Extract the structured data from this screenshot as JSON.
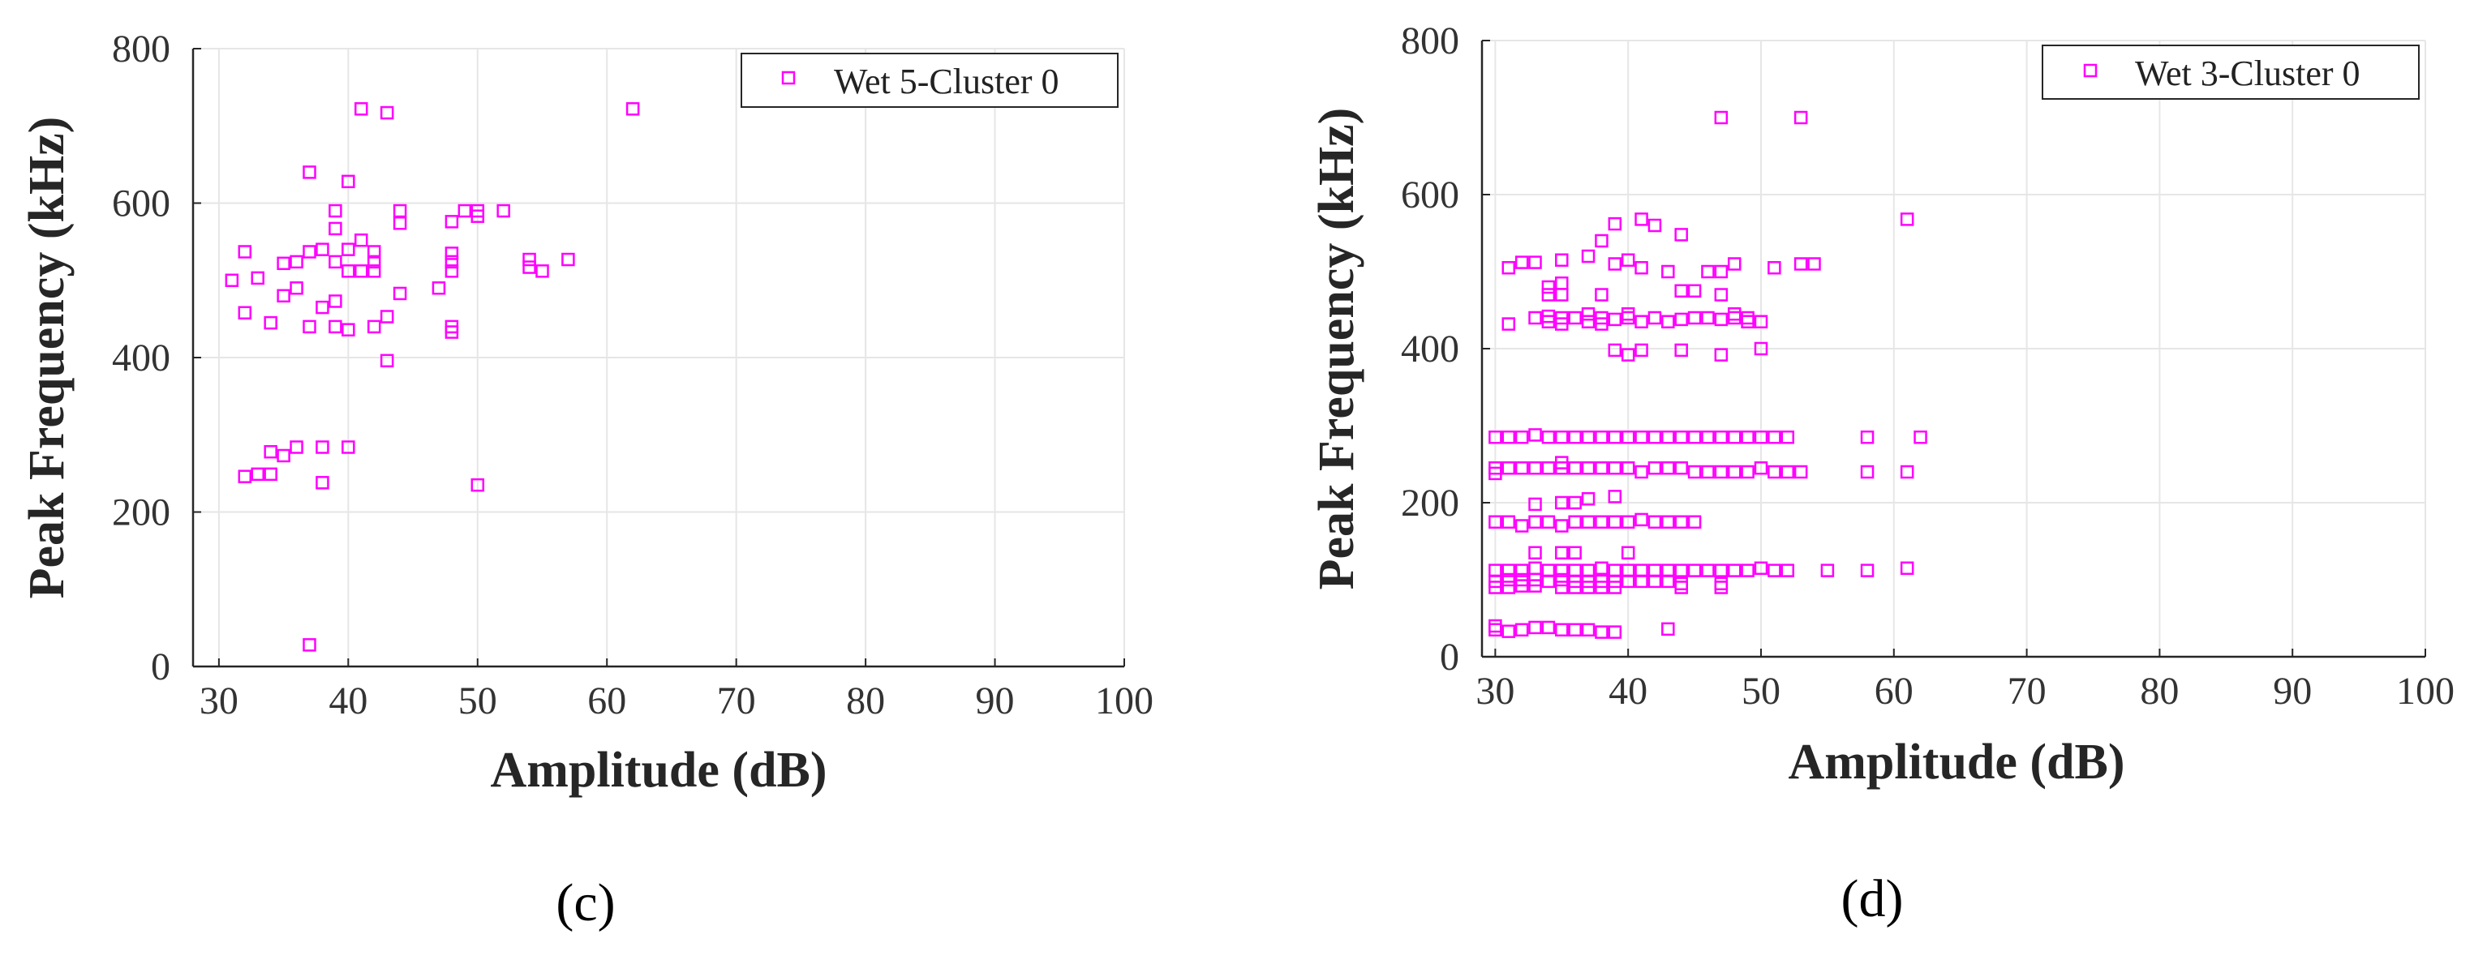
{
  "captions": {
    "c": "(c)",
    "d": "(d)"
  },
  "colors": {
    "marker": "#ff00ff",
    "grid": "#e6e6e6",
    "axis": "#262626"
  },
  "chart_data": [
    {
      "type": "scatter",
      "title": "",
      "xlabel": "Amplitude (dB)",
      "ylabel": "Peak Frequency (kHz)",
      "xlim": [
        28,
        100
      ],
      "ylim": [
        0,
        800
      ],
      "xticks": [
        30,
        40,
        50,
        60,
        70,
        80,
        90,
        100
      ],
      "yticks": [
        0,
        200,
        400,
        600,
        800
      ],
      "grid": true,
      "legend_position": "top-right",
      "series": [
        {
          "name": "Wet 5-Cluster 0",
          "marker": "square",
          "points": [
            [
              31,
              500
            ],
            [
              32,
              537
            ],
            [
              32,
              458
            ],
            [
              32,
              246
            ],
            [
              33,
              503
            ],
            [
              33,
              249
            ],
            [
              34,
              445
            ],
            [
              34,
              278
            ],
            [
              34,
              249
            ],
            [
              35,
              522
            ],
            [
              35,
              480
            ],
            [
              35,
              273
            ],
            [
              36,
              524
            ],
            [
              36,
              490
            ],
            [
              36,
              284
            ],
            [
              37,
              640
            ],
            [
              37,
              537
            ],
            [
              37,
              440
            ],
            [
              37,
              28
            ],
            [
              38,
              540
            ],
            [
              38,
              465
            ],
            [
              38,
              284
            ],
            [
              38,
              238
            ],
            [
              39,
              590
            ],
            [
              39,
              567
            ],
            [
              39,
              524
            ],
            [
              39,
              473
            ],
            [
              39,
              440
            ],
            [
              40,
              628
            ],
            [
              40,
              540
            ],
            [
              40,
              512
            ],
            [
              40,
              436
            ],
            [
              40,
              284
            ],
            [
              41,
              722
            ],
            [
              41,
              552
            ],
            [
              41,
              512
            ],
            [
              42,
              537
            ],
            [
              42,
              524
            ],
            [
              42,
              512
            ],
            [
              42,
              440
            ],
            [
              43,
              717
            ],
            [
              43,
              453
            ],
            [
              43,
              396
            ],
            [
              44,
              590
            ],
            [
              44,
              574
            ],
            [
              44,
              483
            ],
            [
              47,
              490
            ],
            [
              48,
              576
            ],
            [
              48,
              535
            ],
            [
              48,
              524
            ],
            [
              48,
              512
            ],
            [
              48,
              440
            ],
            [
              48,
              433
            ],
            [
              49,
              590
            ],
            [
              50,
              590
            ],
            [
              50,
              583
            ],
            [
              50,
              235
            ],
            [
              52,
              590
            ],
            [
              54,
              527
            ],
            [
              54,
              517
            ],
            [
              55,
              512
            ],
            [
              57,
              527
            ],
            [
              62,
              722
            ]
          ]
        }
      ]
    },
    {
      "type": "scatter",
      "title": "",
      "xlabel": "Amplitude (dB)",
      "ylabel": "Peak Frequency (kHz)",
      "xlim": [
        29,
        100
      ],
      "ylim": [
        0,
        800
      ],
      "xticks": [
        30,
        40,
        50,
        60,
        70,
        80,
        90,
        100
      ],
      "yticks": [
        0,
        200,
        400,
        600,
        800
      ],
      "grid": true,
      "legend_position": "top-right",
      "series": [
        {
          "name": "Wet 3-Cluster 0",
          "marker": "square",
          "points": [
            [
              47,
              700
            ],
            [
              53,
              700
            ],
            [
              41,
              568
            ],
            [
              61,
              568
            ],
            [
              42,
              560
            ],
            [
              39,
              562
            ],
            [
              38,
              540
            ],
            [
              44,
              548
            ],
            [
              31,
              505
            ],
            [
              32,
              512
            ],
            [
              33,
              512
            ],
            [
              35,
              515
            ],
            [
              37,
              520
            ],
            [
              39,
              510
            ],
            [
              40,
              515
            ],
            [
              41,
              505
            ],
            [
              43,
              500
            ],
            [
              46,
              500
            ],
            [
              47,
              500
            ],
            [
              48,
              510
            ],
            [
              51,
              505
            ],
            [
              53,
              510
            ],
            [
              54,
              510
            ],
            [
              34,
              480
            ],
            [
              34,
              470
            ],
            [
              35,
              485
            ],
            [
              35,
              470
            ],
            [
              38,
              470
            ],
            [
              44,
              475
            ],
            [
              45,
              475
            ],
            [
              47,
              470
            ],
            [
              31,
              432
            ],
            [
              33,
              440
            ],
            [
              34,
              435
            ],
            [
              34,
              442
            ],
            [
              35,
              432
            ],
            [
              35,
              440
            ],
            [
              36,
              440
            ],
            [
              37,
              435
            ],
            [
              37,
              445
            ],
            [
              38,
              440
            ],
            [
              38,
              432
            ],
            [
              39,
              438
            ],
            [
              40,
              440
            ],
            [
              40,
              445
            ],
            [
              41,
              435
            ],
            [
              42,
              440
            ],
            [
              43,
              435
            ],
            [
              44,
              438
            ],
            [
              45,
              440
            ],
            [
              46,
              440
            ],
            [
              47,
              438
            ],
            [
              48,
              440
            ],
            [
              48,
              445
            ],
            [
              49,
              440
            ],
            [
              49,
              435
            ],
            [
              50,
              435
            ],
            [
              39,
              398
            ],
            [
              40,
              392
            ],
            [
              41,
              398
            ],
            [
              44,
              398
            ],
            [
              47,
              392
            ],
            [
              50,
              400
            ],
            [
              30,
              285
            ],
            [
              31,
              285
            ],
            [
              32,
              285
            ],
            [
              33,
              288
            ],
            [
              34,
              285
            ],
            [
              35,
              285
            ],
            [
              36,
              285
            ],
            [
              37,
              285
            ],
            [
              38,
              285
            ],
            [
              39,
              285
            ],
            [
              40,
              285
            ],
            [
              41,
              285
            ],
            [
              42,
              285
            ],
            [
              43,
              285
            ],
            [
              44,
              285
            ],
            [
              45,
              285
            ],
            [
              46,
              285
            ],
            [
              47,
              285
            ],
            [
              48,
              285
            ],
            [
              49,
              285
            ],
            [
              50,
              285
            ],
            [
              51,
              285
            ],
            [
              52,
              285
            ],
            [
              58,
              285
            ],
            [
              62,
              285
            ],
            [
              30,
              238
            ],
            [
              30,
              245
            ],
            [
              31,
              245
            ],
            [
              32,
              245
            ],
            [
              33,
              245
            ],
            [
              34,
              245
            ],
            [
              35,
              245
            ],
            [
              35,
              252
            ],
            [
              36,
              245
            ],
            [
              37,
              245
            ],
            [
              38,
              245
            ],
            [
              39,
              245
            ],
            [
              40,
              245
            ],
            [
              41,
              240
            ],
            [
              42,
              245
            ],
            [
              43,
              245
            ],
            [
              44,
              245
            ],
            [
              45,
              240
            ],
            [
              46,
              240
            ],
            [
              47,
              240
            ],
            [
              48,
              240
            ],
            [
              49,
              240
            ],
            [
              50,
              245
            ],
            [
              51,
              240
            ],
            [
              52,
              240
            ],
            [
              53,
              240
            ],
            [
              58,
              240
            ],
            [
              61,
              240
            ],
            [
              33,
              198
            ],
            [
              35,
              200
            ],
            [
              36,
              200
            ],
            [
              37,
              205
            ],
            [
              39,
              208
            ],
            [
              30,
              175
            ],
            [
              31,
              175
            ],
            [
              32,
              170
            ],
            [
              33,
              175
            ],
            [
              34,
              175
            ],
            [
              35,
              170
            ],
            [
              36,
              175
            ],
            [
              37,
              175
            ],
            [
              38,
              175
            ],
            [
              39,
              175
            ],
            [
              40,
              175
            ],
            [
              41,
              178
            ],
            [
              42,
              175
            ],
            [
              43,
              175
            ],
            [
              44,
              175
            ],
            [
              45,
              175
            ],
            [
              33,
              135
            ],
            [
              35,
              135
            ],
            [
              36,
              135
            ],
            [
              40,
              135
            ],
            [
              30,
              112
            ],
            [
              31,
              112
            ],
            [
              32,
              112
            ],
            [
              33,
              115
            ],
            [
              34,
              112
            ],
            [
              35,
              112
            ],
            [
              36,
              112
            ],
            [
              37,
              112
            ],
            [
              38,
              115
            ],
            [
              39,
              112
            ],
            [
              40,
              112
            ],
            [
              41,
              112
            ],
            [
              42,
              112
            ],
            [
              43,
              112
            ],
            [
              44,
              112
            ],
            [
              45,
              112
            ],
            [
              46,
              112
            ],
            [
              47,
              112
            ],
            [
              48,
              112
            ],
            [
              49,
              112
            ],
            [
              50,
              115
            ],
            [
              51,
              112
            ],
            [
              52,
              112
            ],
            [
              55,
              112
            ],
            [
              58,
              112
            ],
            [
              61,
              115
            ],
            [
              30,
              98
            ],
            [
              31,
              100
            ],
            [
              32,
              100
            ],
            [
              33,
              100
            ],
            [
              34,
              98
            ],
            [
              35,
              100
            ],
            [
              36,
              98
            ],
            [
              37,
              98
            ],
            [
              38,
              98
            ],
            [
              39,
              98
            ],
            [
              40,
              98
            ],
            [
              41,
              98
            ],
            [
              42,
              98
            ],
            [
              43,
              98
            ],
            [
              44,
              95
            ],
            [
              47,
              95
            ],
            [
              30,
              90
            ],
            [
              31,
              90
            ],
            [
              32,
              92
            ],
            [
              33,
              92
            ],
            [
              35,
              90
            ],
            [
              36,
              90
            ],
            [
              37,
              90
            ],
            [
              38,
              90
            ],
            [
              39,
              90
            ],
            [
              44,
              90
            ],
            [
              47,
              90
            ],
            [
              30,
              35
            ],
            [
              30,
              40
            ],
            [
              31,
              33
            ],
            [
              32,
              35
            ],
            [
              33,
              38
            ],
            [
              34,
              38
            ],
            [
              35,
              35
            ],
            [
              36,
              35
            ],
            [
              37,
              35
            ],
            [
              38,
              32
            ],
            [
              39,
              32
            ],
            [
              43,
              36
            ]
          ]
        }
      ]
    }
  ]
}
